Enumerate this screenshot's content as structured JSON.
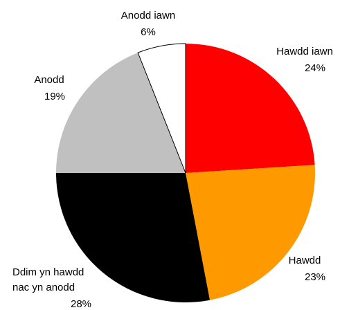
{
  "chart_data": {
    "type": "pie",
    "title": "",
    "start_angle_deg": 0,
    "direction": "clockwise",
    "slices": [
      {
        "label_lines": [
          "Hawdd iawn"
        ],
        "percent_label": "24%",
        "value": 24,
        "color": "#ff0000"
      },
      {
        "label_lines": [
          "Hawdd"
        ],
        "percent_label": "23%",
        "value": 23,
        "color": "#ff9900"
      },
      {
        "label_lines": [
          "Ddim yn hawdd",
          "nac yn anodd"
        ],
        "percent_label": "28%",
        "value": 28,
        "color": "#000000"
      },
      {
        "label_lines": [
          "Anodd"
        ],
        "percent_label": "19%",
        "value": 19,
        "color": "#c0c0c0"
      },
      {
        "label_lines": [
          "Anodd iawn"
        ],
        "percent_label": "6%",
        "value": 6,
        "color": "#ffffff"
      }
    ],
    "slice_border_color": "#000000"
  }
}
